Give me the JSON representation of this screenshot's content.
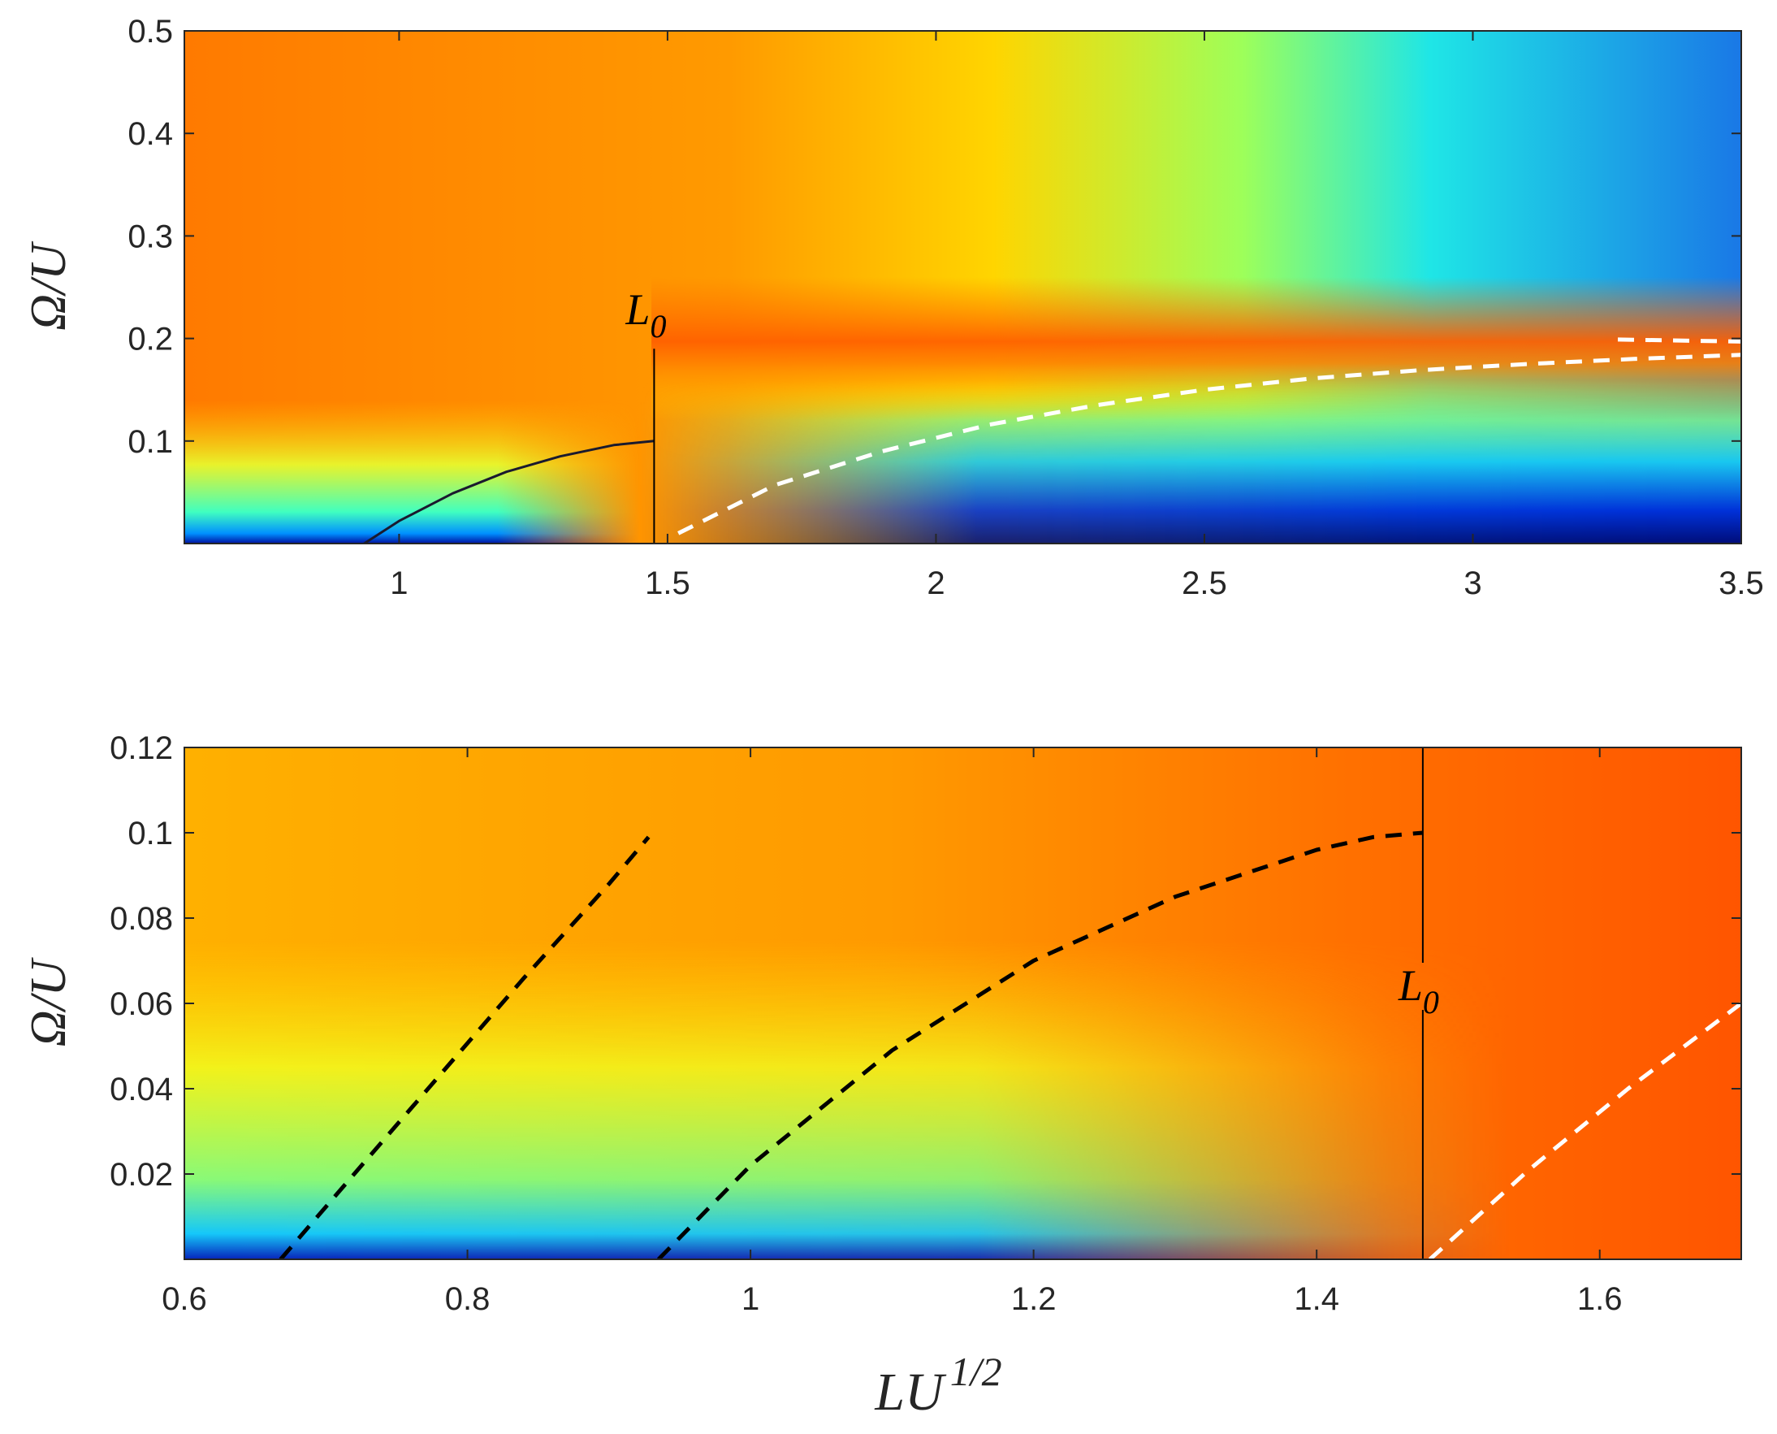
{
  "chart_data": [
    {
      "type": "heatmap",
      "title": "",
      "xlabel": "",
      "ylabel": "Ω/U",
      "xlim": [
        0.6,
        3.5
      ],
      "ylim": [
        0.0,
        0.5
      ],
      "xticks": [
        {
          "value": 1,
          "label": "1"
        },
        {
          "value": 1.5,
          "label": "1.5"
        },
        {
          "value": 2,
          "label": "2"
        },
        {
          "value": 2.5,
          "label": "2.5"
        },
        {
          "value": 3,
          "label": "3"
        },
        {
          "value": 3.5,
          "label": "3.5"
        }
      ],
      "yticks": [
        {
          "value": 0.1,
          "label": "0.1"
        },
        {
          "value": 0.2,
          "label": "0.2"
        },
        {
          "value": 0.3,
          "label": "0.3"
        },
        {
          "value": 0.4,
          "label": "0.4"
        },
        {
          "value": 0.5,
          "label": "0.5"
        }
      ],
      "colormap": "jet",
      "vertical_marker": {
        "x": 1.475,
        "y_top": 0.19,
        "label_main": "L",
        "label_sub": "0",
        "color": "#000000"
      },
      "curves": [
        {
          "style": "dashed",
          "color": "#ffffff",
          "x": [
            1.52,
            1.7,
            1.9,
            2.1,
            2.3,
            2.5,
            2.7,
            2.9,
            3.1,
            3.3,
            3.5
          ],
          "y": [
            0.01,
            0.057,
            0.09,
            0.116,
            0.135,
            0.15,
            0.161,
            0.169,
            0.175,
            0.18,
            0.184
          ]
        },
        {
          "style": "dashed",
          "color": "#ffffff",
          "x": [
            3.27,
            3.5
          ],
          "y": [
            0.199,
            0.197
          ]
        },
        {
          "style": "solid-thin",
          "color": "#1a1a2e",
          "x": [
            0.935,
            1.0,
            1.1,
            1.2,
            1.3,
            1.4,
            1.475
          ],
          "y": [
            0.0,
            0.022,
            0.049,
            0.07,
            0.085,
            0.096,
            0.1
          ]
        }
      ]
    },
    {
      "type": "heatmap",
      "title": "",
      "xlabel": "LU^{1/2}",
      "ylabel": "Ω/U",
      "xlim": [
        0.6,
        1.7
      ],
      "ylim": [
        0.0,
        0.12
      ],
      "xticks": [
        {
          "value": 0.6,
          "label": "0.6"
        },
        {
          "value": 0.8,
          "label": "0.8"
        },
        {
          "value": 1.0,
          "label": "1"
        },
        {
          "value": 1.2,
          "label": "1.2"
        },
        {
          "value": 1.4,
          "label": "1.4"
        },
        {
          "value": 1.6,
          "label": "1.6"
        }
      ],
      "yticks": [
        {
          "value": 0.02,
          "label": "0.02"
        },
        {
          "value": 0.04,
          "label": "0.04"
        },
        {
          "value": 0.06,
          "label": "0.06"
        },
        {
          "value": 0.08,
          "label": "0.08"
        },
        {
          "value": 0.1,
          "label": "0.1"
        },
        {
          "value": 0.12,
          "label": "0.12"
        }
      ],
      "colormap": "jet",
      "vertical_marker": {
        "x": 1.475,
        "y_top": 0.12,
        "label_main": "L",
        "label_sub": "0",
        "color": "#000000"
      },
      "curves": [
        {
          "style": "dashed",
          "color": "#000000",
          "x": [
            0.668,
            0.72,
            0.78,
            0.84,
            0.9,
            0.928
          ],
          "y": [
            0.0,
            0.02,
            0.043,
            0.066,
            0.088,
            0.099
          ]
        },
        {
          "style": "dashed",
          "color": "#000000",
          "x": [
            0.935,
            1.0,
            1.1,
            1.2,
            1.3,
            1.4,
            1.44,
            1.475
          ],
          "y": [
            0.0,
            0.022,
            0.049,
            0.07,
            0.085,
            0.096,
            0.099,
            0.1
          ]
        },
        {
          "style": "dashed",
          "color": "#ffffff",
          "x": [
            1.48,
            1.55,
            1.62,
            1.7
          ],
          "y": [
            0.0,
            0.021,
            0.04,
            0.06
          ]
        }
      ]
    }
  ],
  "x_axis_label": {
    "main": "LU",
    "superscript": "1/2"
  }
}
